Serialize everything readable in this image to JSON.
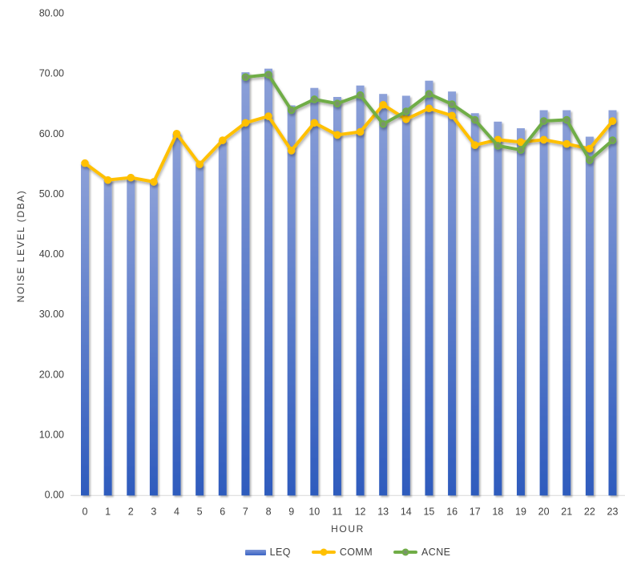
{
  "chart_data": {
    "type": "combo",
    "title": "",
    "xlabel": "HOUR",
    "ylabel": "NOISE LEVEL (DBA)",
    "ylim": [
      0,
      80
    ],
    "ytick_step": 10,
    "yticks": [
      "0.00",
      "10.00",
      "20.00",
      "30.00",
      "40.00",
      "50.00",
      "60.00",
      "70.00",
      "80.00"
    ],
    "grid": false,
    "legend_position": "bottom",
    "categories": [
      "0",
      "1",
      "2",
      "3",
      "4",
      "5",
      "6",
      "7",
      "8",
      "9",
      "10",
      "11",
      "12",
      "13",
      "14",
      "15",
      "16",
      "17",
      "18",
      "19",
      "20",
      "21",
      "22",
      "23"
    ],
    "series": [
      {
        "name": "LEQ",
        "kind": "bar",
        "values": [
          55.0,
          52.4,
          52.7,
          52.1,
          60.1,
          55.0,
          59.0,
          70.3,
          70.9,
          64.8,
          67.7,
          66.2,
          68.1,
          66.7,
          66.4,
          68.9,
          67.1,
          63.5,
          62.1,
          61.0,
          64.0,
          64.0,
          59.6,
          64.0
        ]
      },
      {
        "name": "COMM",
        "kind": "line",
        "color": "#FFC000",
        "values": [
          55.2,
          52.4,
          52.8,
          52.1,
          60.1,
          55.0,
          59.0,
          61.9,
          63.0,
          57.3,
          61.9,
          59.9,
          60.4,
          64.9,
          62.5,
          64.3,
          63.1,
          58.2,
          59.1,
          58.7,
          59.1,
          58.4,
          57.6,
          62.2
        ]
      },
      {
        "name": "ACNE",
        "kind": "line",
        "color": "#70AD47",
        "values": [
          null,
          null,
          null,
          null,
          null,
          null,
          null,
          69.5,
          69.9,
          64.0,
          65.8,
          65.1,
          66.5,
          61.7,
          63.8,
          66.7,
          65.0,
          62.4,
          58.1,
          57.4,
          62.2,
          62.4,
          55.7,
          59.0
        ]
      }
    ],
    "colors": {
      "bar_top": "#8CA0D8",
      "bar_bottom": "#2E5BBD",
      "leq_legend": "#4472C4",
      "comm": "#FFC000",
      "acne": "#70AD47",
      "acne_marker_fill": "#79946A",
      "axis_text": "#404040",
      "axis_line": "#D9D9D9"
    }
  }
}
